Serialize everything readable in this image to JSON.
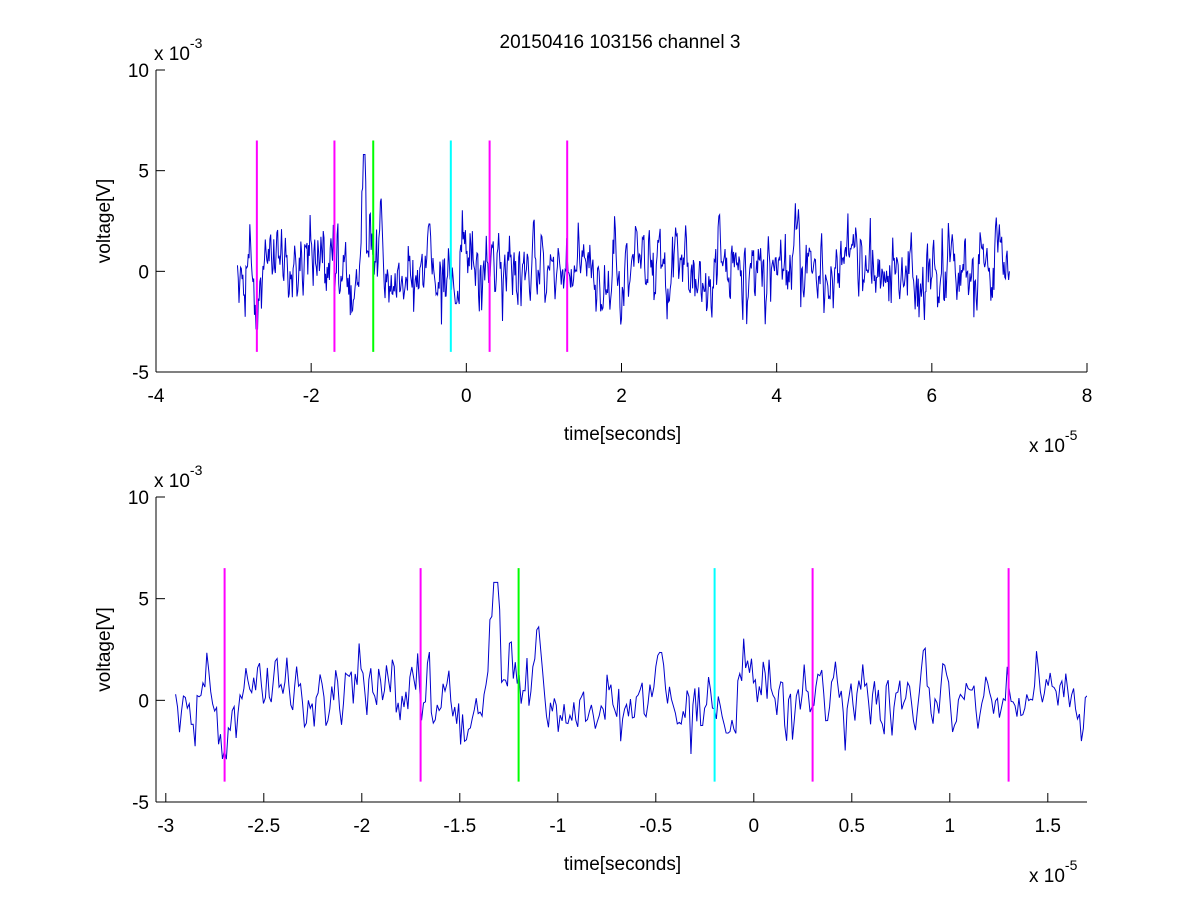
{
  "figure": {
    "title": "20150416 103156 channel 3",
    "background": "#ffffff"
  },
  "chart_data": [
    {
      "type": "line",
      "title": "20150416 103156 channel 3",
      "xlabel": "time[seconds]",
      "ylabel": "voltage[V]",
      "x_exponent_label": "x 10",
      "x_exponent": "-5",
      "y_exponent_label": "x 10",
      "y_exponent": "-3",
      "xlim": [
        -4,
        8
      ],
      "ylim": [
        -5,
        10
      ],
      "xticks": [
        -4,
        -2,
        0,
        2,
        4,
        6,
        8
      ],
      "yticks": [
        -5,
        0,
        5,
        10
      ],
      "grid": false,
      "box": "left-bottom",
      "signal": {
        "color": "#0000cc",
        "x_range": [
          -2.95,
          7.0
        ],
        "description": "noisy waveform mostly within -2 to 2 (x10^-3 V) with a spike near 5.8 at about -1.3"
      },
      "markers": [
        {
          "x": -2.7,
          "color": "#ff00ff",
          "y_range": [
            -4,
            6.5
          ]
        },
        {
          "x": -1.7,
          "color": "#ff00ff",
          "y_range": [
            -4,
            6.5
          ]
        },
        {
          "x": -1.2,
          "color": "#00ff00",
          "y_range": [
            -4,
            6.5
          ]
        },
        {
          "x": -0.2,
          "color": "#00ffff",
          "y_range": [
            -4,
            6.5
          ]
        },
        {
          "x": 0.3,
          "color": "#ff00ff",
          "y_range": [
            -4,
            6.5
          ]
        },
        {
          "x": 1.3,
          "color": "#ff00ff",
          "y_range": [
            -4,
            6.5
          ]
        }
      ]
    },
    {
      "type": "line",
      "xlabel": "time[seconds]",
      "ylabel": "voltage[V]",
      "x_exponent_label": "x 10",
      "x_exponent": "-5",
      "y_exponent_label": "x 10",
      "y_exponent": "-3",
      "xlim": [
        -3.05,
        1.7
      ],
      "ylim": [
        -5,
        10
      ],
      "xticks": [
        -3,
        -2.5,
        -2,
        -1.5,
        -1,
        -0.5,
        0,
        0.5,
        1,
        1.5
      ],
      "yticks": [
        -5,
        0,
        5,
        10
      ],
      "grid": false,
      "box": "left-bottom",
      "signal": {
        "color": "#0000cc",
        "x_range": [
          -2.95,
          1.7
        ],
        "description": "zoomed view of the same waveform; spike near 5.8 at about -1.32"
      },
      "markers": [
        {
          "x": -2.7,
          "color": "#ff00ff",
          "y_range": [
            -4,
            6.5
          ]
        },
        {
          "x": -1.7,
          "color": "#ff00ff",
          "y_range": [
            -4,
            6.5
          ]
        },
        {
          "x": -1.2,
          "color": "#00ff00",
          "y_range": [
            -4,
            6.5
          ]
        },
        {
          "x": -0.2,
          "color": "#00ffff",
          "y_range": [
            -4,
            6.5
          ]
        },
        {
          "x": 0.3,
          "color": "#ff00ff",
          "y_range": [
            -4,
            6.5
          ]
        },
        {
          "x": 1.3,
          "color": "#ff00ff",
          "y_range": [
            -4,
            6.5
          ]
        }
      ]
    }
  ]
}
